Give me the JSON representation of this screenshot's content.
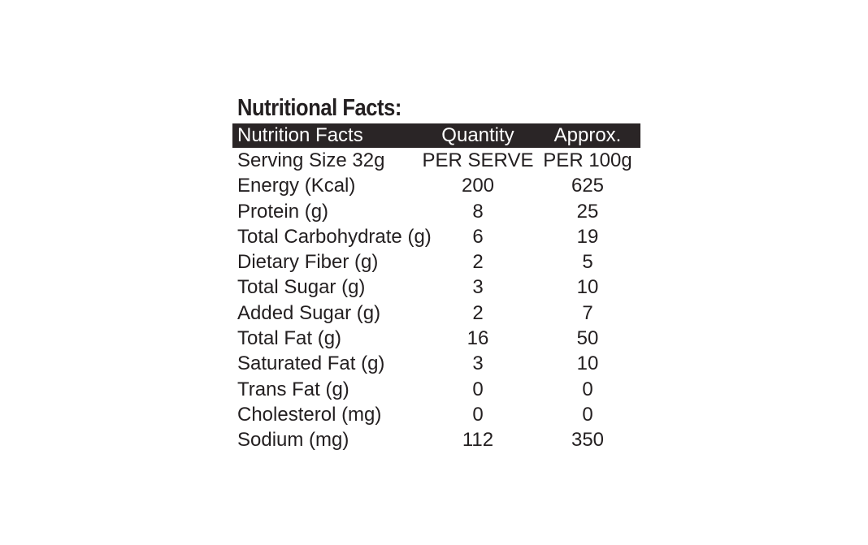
{
  "title": "Nutritional Facts:",
  "header": {
    "col1": "Nutrition Facts",
    "col2": "Quantity",
    "col3": "Approx."
  },
  "rows": [
    {
      "name": "Serving Size 32g",
      "per_serve": "PER SERVE",
      "per_100g": "PER 100g"
    },
    {
      "name": "Energy (Kcal)",
      "per_serve": "200",
      "per_100g": "625"
    },
    {
      "name": "Protein (g)",
      "per_serve": "8",
      "per_100g": "25"
    },
    {
      "name": "Total Carbohydrate (g)",
      "per_serve": "6",
      "per_100g": "19"
    },
    {
      "name": "Dietary Fiber (g)",
      "per_serve": "2",
      "per_100g": "5"
    },
    {
      "name": "Total Sugar (g)",
      "per_serve": "3",
      "per_100g": "10"
    },
    {
      "name": "Added Sugar (g)",
      "per_serve": "2",
      "per_100g": "7"
    },
    {
      "name": "Total Fat (g)",
      "per_serve": "16",
      "per_100g": "50"
    },
    {
      "name": "Saturated Fat (g)",
      "per_serve": "3",
      "per_100g": "10"
    },
    {
      "name": "Trans Fat (g)",
      "per_serve": "0",
      "per_100g": "0"
    },
    {
      "name": "Cholesterol (mg)",
      "per_serve": "0",
      "per_100g": "0"
    },
    {
      "name": "Sodium (mg)",
      "per_serve": "112",
      "per_100g": "350"
    }
  ],
  "colors": {
    "text": "#231f20",
    "header_background": "#2a2526",
    "header_text": "#ffffff",
    "background": "#ffffff"
  }
}
